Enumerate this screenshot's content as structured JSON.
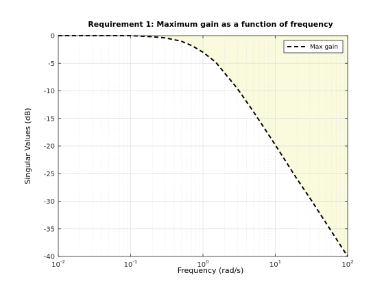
{
  "chart_data": {
    "type": "line",
    "title": "Requirement 1: Maximum gain as a function of frequency",
    "xlabel": "Frequency (rad/s)",
    "ylabel": "Singular Values (dB)",
    "xscale": "log",
    "xlim": [
      0.01,
      100
    ],
    "ylim": [
      -40,
      0
    ],
    "x_ticks": [
      {
        "base": "10",
        "exp": "-2",
        "value": 0.01
      },
      {
        "base": "10",
        "exp": "-1",
        "value": 0.1
      },
      {
        "base": "10",
        "exp": "0",
        "value": 1
      },
      {
        "base": "10",
        "exp": "1",
        "value": 10
      },
      {
        "base": "10",
        "exp": "2",
        "value": 100
      }
    ],
    "y_ticks": [
      {
        "label": "0",
        "value": 0
      },
      {
        "label": "-5",
        "value": -5
      },
      {
        "label": "-10",
        "value": -10
      },
      {
        "label": "-15",
        "value": -15
      },
      {
        "label": "-20",
        "value": -20
      },
      {
        "label": "-25",
        "value": -25
      },
      {
        "label": "-30",
        "value": -30
      },
      {
        "label": "-35",
        "value": -35
      },
      {
        "label": "-40",
        "value": -40
      }
    ],
    "grid": true,
    "legend": {
      "placement": "top-right"
    },
    "series": [
      {
        "name": "Max gain",
        "style": "dashed",
        "color": "#000000",
        "x": [
          0.01,
          0.03,
          0.1,
          0.2,
          0.3,
          0.5,
          0.7,
          1.0,
          1.5,
          2.0,
          3.0,
          5.0,
          7.0,
          10,
          20,
          30,
          50,
          100
        ],
        "y": [
          0,
          0,
          0,
          -0.2,
          -0.4,
          -1.0,
          -1.8,
          -3.0,
          -4.8,
          -6.8,
          -9.6,
          -13.8,
          -16.7,
          -19.8,
          -26.0,
          -29.4,
          -33.9,
          -40.0
        ]
      }
    ],
    "shaded_region": {
      "description_of": "Max gain",
      "fill": "#fafadc",
      "side": "above"
    },
    "colors": {
      "shade": "#fafadc",
      "grid": "#dedede",
      "minor_grid": "#dedede",
      "axes": "#262626"
    }
  }
}
